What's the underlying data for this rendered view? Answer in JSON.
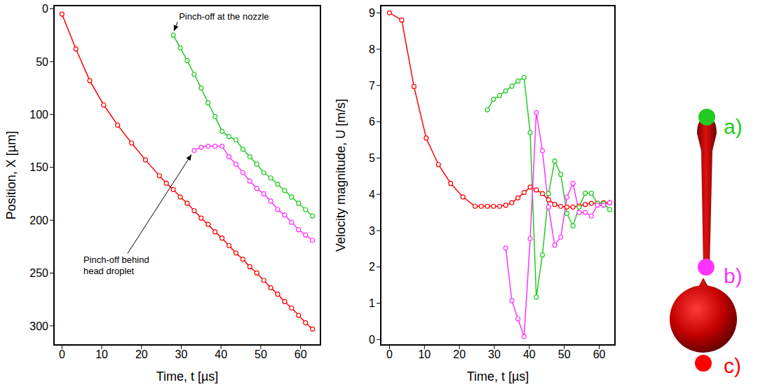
{
  "chart_data": [
    {
      "type": "line",
      "x": [
        0,
        3.5,
        7,
        10.5,
        14,
        17.5,
        21,
        24.5,
        26.25,
        28,
        29.75,
        31.5,
        33.25,
        35,
        36.75,
        38.5,
        40.25,
        42,
        43.75,
        45.5,
        47.25,
        49,
        50.75,
        52.5,
        54.25,
        56,
        57.75,
        59.5,
        61.25,
        63
      ],
      "x_label": "Time, t [µs]",
      "y_label": "Position, X [µm]",
      "xlim": [
        -2,
        65
      ],
      "xticks": [
        0,
        10,
        20,
        30,
        40,
        50,
        60
      ],
      "ylim": [
        318,
        -3
      ],
      "yticks": [
        0,
        50,
        100,
        150,
        200,
        250,
        300
      ],
      "marker": "o",
      "series": [
        {
          "color": "#ff0000",
          "values": [
            5,
            38,
            68,
            91,
            110,
            127,
            143,
            158,
            165,
            171,
            178,
            184,
            191,
            198,
            204,
            211,
            217,
            224,
            231,
            237,
            244,
            250,
            257,
            264,
            270,
            277,
            283,
            290,
            297,
            303
          ]
        },
        {
          "color": "#22cc22",
          "values": [
            null,
            null,
            null,
            null,
            null,
            null,
            null,
            null,
            null,
            25,
            37,
            49,
            62,
            75,
            89,
            102,
            116,
            121,
            124,
            133,
            140,
            147,
            155,
            160,
            166,
            172,
            178,
            184,
            190,
            196
          ]
        },
        {
          "color": "#ff33ff",
          "values": [
            null,
            null,
            null,
            null,
            null,
            null,
            null,
            null,
            null,
            null,
            null,
            null,
            134,
            131,
            130,
            130,
            130,
            140,
            147,
            155,
            163,
            170,
            175,
            182,
            190,
            195,
            202,
            209,
            214,
            219
          ]
        }
      ],
      "annotations": [
        {
          "text": "Pinch-off at the nozzle",
          "x": 28,
          "y": 25
        },
        {
          "text": "Pinch-off behind\nhead droplet",
          "x": 33.25,
          "y": 134
        }
      ]
    },
    {
      "type": "line",
      "x": [
        0,
        3.5,
        7,
        10.5,
        14,
        17.5,
        21,
        24.5,
        26.25,
        28,
        29.75,
        31.5,
        33.25,
        35,
        36.75,
        38.5,
        40.25,
        42,
        43.75,
        45.5,
        47.25,
        49,
        50.75,
        52.5,
        54.25,
        56,
        57.75,
        59.5,
        61.25,
        63
      ],
      "x_label": "Time, t [µs]",
      "y_label": "Velocity magnitude, U [m/s]",
      "xlim": [
        -2.5,
        64.5
      ],
      "xticks": [
        0,
        10,
        20,
        30,
        40,
        50,
        60
      ],
      "ylim": [
        -0.15,
        9.2
      ],
      "yticks": [
        0,
        1,
        2,
        3,
        4,
        5,
        6,
        7,
        8,
        9
      ],
      "marker": "o",
      "series": [
        {
          "color": "#ff0000",
          "values": [
            9.0,
            8.8,
            6.97,
            5.55,
            4.82,
            4.3,
            3.93,
            3.67,
            3.67,
            3.67,
            3.67,
            3.67,
            3.7,
            3.77,
            3.9,
            4.05,
            4.2,
            4.12,
            4.02,
            3.85,
            3.72,
            3.67,
            3.65,
            3.65,
            3.68,
            3.72,
            3.75,
            3.75,
            3.77,
            3.77
          ]
        },
        {
          "color": "#22cc22",
          "values": [
            null,
            null,
            null,
            null,
            null,
            null,
            null,
            null,
            null,
            6.33,
            6.62,
            6.72,
            6.85,
            6.98,
            7.12,
            7.22,
            5.7,
            1.17,
            2.33,
            4.02,
            4.92,
            4.55,
            3.47,
            3.13,
            3.65,
            4.03,
            4.03,
            3.75,
            3.75,
            3.58
          ]
        },
        {
          "color": "#ff33ff",
          "values": [
            null,
            null,
            null,
            null,
            null,
            null,
            null,
            null,
            null,
            null,
            null,
            null,
            2.52,
            1.07,
            0.57,
            0.08,
            2.78,
            6.25,
            5.2,
            3.65,
            2.6,
            2.82,
            3.92,
            4.3,
            3.5,
            3.5,
            3.4,
            3.7,
            3.7,
            3.77
          ]
        }
      ]
    }
  ],
  "diagram": {
    "labels": [
      {
        "text": "a)",
        "color": "#22cc22"
      },
      {
        "text": "b)",
        "color": "#ff33ff"
      },
      {
        "text": "c)",
        "color": "#ff0000"
      }
    ]
  }
}
